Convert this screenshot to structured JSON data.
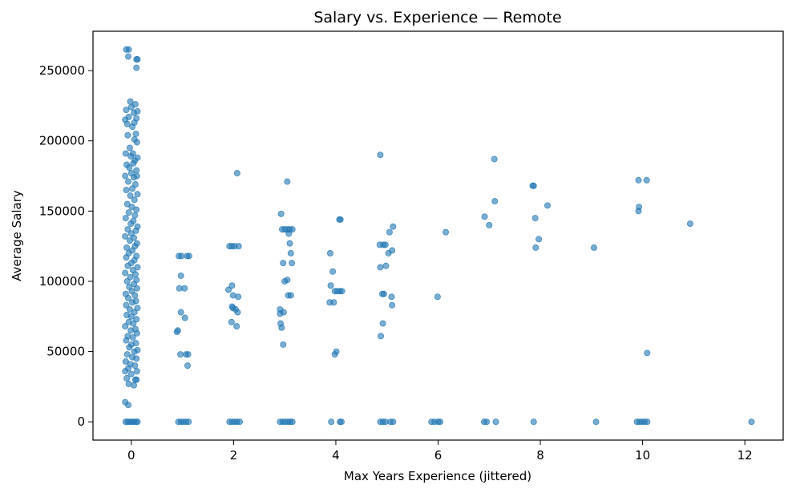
{
  "chart_data": {
    "type": "scatter",
    "title": "Salary vs. Experience — Remote",
    "xlabel": "Max Years Experience (jittered)",
    "ylabel": "Average Salary",
    "xlim": [
      -0.75,
      12.75
    ],
    "ylim": [
      -13000,
      278000
    ],
    "xticks": [
      0,
      2,
      4,
      6,
      8,
      10,
      12
    ],
    "xtick_labels": [
      "0",
      "2",
      "4",
      "6",
      "8",
      "10",
      "12"
    ],
    "yticks": [
      0,
      50000,
      100000,
      150000,
      200000,
      250000
    ],
    "ytick_labels": [
      "0",
      "50000",
      "100000",
      "150000",
      "200000",
      "250000"
    ],
    "grid": false,
    "legend": "none",
    "marker_color": "#1f77b4",
    "marker_alpha": 0.6,
    "points": [
      [
        -0.1,
        265000
      ],
      [
        -0.05,
        265000
      ],
      [
        0.1,
        258000
      ],
      [
        0.12,
        258000
      ],
      [
        -0.06,
        260000
      ],
      [
        0.1,
        252000
      ],
      [
        -0.02,
        228000
      ],
      [
        0.08,
        226000
      ],
      [
        -0.1,
        222000
      ],
      [
        0.0,
        224000
      ],
      [
        0.05,
        220000
      ],
      [
        0.12,
        221000
      ],
      [
        -0.12,
        215000
      ],
      [
        -0.05,
        217000
      ],
      [
        0.06,
        213000
      ],
      [
        0.1,
        216000
      ],
      [
        -0.08,
        212000
      ],
      [
        0.02,
        210000
      ],
      [
        0.09,
        205000
      ],
      [
        -0.07,
        204000
      ],
      [
        0.11,
        199000
      ],
      [
        0.06,
        201000
      ],
      [
        -0.03,
        195000
      ],
      [
        0.03,
        191000
      ],
      [
        -0.11,
        191000
      ],
      [
        0.12,
        188000
      ],
      [
        -0.01,
        189000
      ],
      [
        0.07,
        186000
      ],
      [
        -0.09,
        183000
      ],
      [
        0.04,
        184000
      ],
      [
        0.1,
        179000
      ],
      [
        -0.04,
        181000
      ],
      [
        0.0,
        177000
      ],
      [
        -0.12,
        175000
      ],
      [
        0.11,
        175000
      ],
      [
        0.05,
        174000
      ],
      [
        -0.06,
        171000
      ],
      [
        0.08,
        169000
      ],
      [
        0.02,
        166000
      ],
      [
        -0.1,
        165000
      ],
      [
        0.12,
        162000
      ],
      [
        -0.02,
        161000
      ],
      [
        0.06,
        158000
      ],
      [
        -0.08,
        155000
      ],
      [
        0.01,
        153000
      ],
      [
        0.1,
        151000
      ],
      [
        -0.05,
        149000
      ],
      [
        0.07,
        147000
      ],
      [
        -0.11,
        145000
      ],
      [
        0.04,
        143000
      ],
      [
        -0.01,
        141000
      ],
      [
        0.12,
        139000
      ],
      [
        -0.07,
        137000
      ],
      [
        0.09,
        136000
      ],
      [
        0.0,
        134000
      ],
      [
        -0.12,
        132000
      ],
      [
        0.05,
        131000
      ],
      [
        -0.03,
        129000
      ],
      [
        0.11,
        127000
      ],
      [
        0.07,
        125000
      ],
      [
        -0.09,
        124000
      ],
      [
        0.02,
        122000
      ],
      [
        -0.05,
        120000
      ],
      [
        0.1,
        118000
      ],
      [
        -0.1,
        117000
      ],
      [
        0.06,
        115000
      ],
      [
        0.0,
        113000
      ],
      [
        -0.07,
        111000
      ],
      [
        0.12,
        110000
      ],
      [
        0.03,
        108000
      ],
      [
        -0.12,
        106000
      ],
      [
        0.08,
        105000
      ],
      [
        -0.02,
        103000
      ],
      [
        0.1,
        101000
      ],
      [
        -0.08,
        100000
      ],
      [
        0.05,
        98000
      ],
      [
        -0.04,
        96000
      ],
      [
        0.11,
        95000
      ],
      [
        0.01,
        93000
      ],
      [
        -0.11,
        91000
      ],
      [
        0.07,
        90000
      ],
      [
        -0.06,
        88000
      ],
      [
        0.09,
        86000
      ],
      [
        0.02,
        85000
      ],
      [
        -0.1,
        83000
      ],
      [
        0.12,
        81000
      ],
      [
        -0.03,
        80000
      ],
      [
        0.06,
        78000
      ],
      [
        -0.09,
        76000
      ],
      [
        0.0,
        75000
      ],
      [
        0.1,
        73000
      ],
      [
        -0.05,
        71000
      ],
      [
        0.04,
        70000
      ],
      [
        -0.12,
        68000
      ],
      [
        0.08,
        66000
      ],
      [
        -0.01,
        65000
      ],
      [
        0.11,
        63000
      ],
      [
        -0.07,
        61000
      ],
      [
        0.03,
        60000
      ],
      [
        -0.1,
        58000
      ],
      [
        0.09,
        56000
      ],
      [
        0.0,
        55000
      ],
      [
        -0.04,
        53000
      ],
      [
        0.12,
        51000
      ],
      [
        0.06,
        50000
      ],
      [
        -0.08,
        48000
      ],
      [
        0.02,
        46000
      ],
      [
        0.1,
        45000
      ],
      [
        -0.11,
        43000
      ],
      [
        -0.02,
        41000
      ],
      [
        0.07,
        40000
      ],
      [
        -0.06,
        38000
      ],
      [
        0.11,
        36000
      ],
      [
        0.0,
        34000
      ],
      [
        -0.09,
        31000
      ],
      [
        0.08,
        30000
      ],
      [
        0.1,
        30000
      ],
      [
        -0.05,
        27000
      ],
      [
        0.05,
        26000
      ],
      [
        -0.12,
        36000
      ],
      [
        -0.12,
        14000
      ],
      [
        -0.06,
        12000
      ],
      [
        -0.11,
        0
      ],
      [
        -0.07,
        0
      ],
      [
        -0.03,
        0
      ],
      [
        0.01,
        0
      ],
      [
        0.05,
        0
      ],
      [
        0.09,
        0
      ],
      [
        0.12,
        0
      ],
      [
        0.98,
        118000
      ],
      [
        0.93,
        118000
      ],
      [
        1.09,
        118000
      ],
      [
        1.13,
        118000
      ],
      [
        0.97,
        104000
      ],
      [
        1.04,
        95000
      ],
      [
        0.94,
        95000
      ],
      [
        0.97,
        78000
      ],
      [
        1.05,
        74000
      ],
      [
        0.91,
        65000
      ],
      [
        0.89,
        64000
      ],
      [
        0.96,
        48000
      ],
      [
        1.07,
        48000
      ],
      [
        1.11,
        48000
      ],
      [
        1.1,
        40000
      ],
      [
        0.92,
        0
      ],
      [
        0.97,
        0
      ],
      [
        1.02,
        0
      ],
      [
        1.07,
        0
      ],
      [
        1.12,
        0
      ],
      [
        2.07,
        177000
      ],
      [
        1.92,
        125000
      ],
      [
        1.97,
        125000
      ],
      [
        2.02,
        125000
      ],
      [
        2.1,
        125000
      ],
      [
        1.9,
        94000
      ],
      [
        1.97,
        97000
      ],
      [
        1.99,
        90000
      ],
      [
        2.09,
        89000
      ],
      [
        1.97,
        82000
      ],
      [
        2.04,
        80000
      ],
      [
        1.99,
        81000
      ],
      [
        2.08,
        78000
      ],
      [
        1.96,
        71000
      ],
      [
        2.06,
        68000
      ],
      [
        1.92,
        0
      ],
      [
        1.97,
        0
      ],
      [
        2.02,
        0
      ],
      [
        2.07,
        0
      ],
      [
        2.12,
        0
      ],
      [
        3.05,
        171000
      ],
      [
        2.93,
        148000
      ],
      [
        2.95,
        137000
      ],
      [
        3.0,
        137000
      ],
      [
        3.05,
        137000
      ],
      [
        3.1,
        137000
      ],
      [
        3.15,
        137000
      ],
      [
        3.08,
        134000
      ],
      [
        3.1,
        127000
      ],
      [
        3.12,
        120000
      ],
      [
        2.97,
        113000
      ],
      [
        3.14,
        113000
      ],
      [
        3.05,
        101000
      ],
      [
        3.0,
        100000
      ],
      [
        3.07,
        90000
      ],
      [
        3.12,
        90000
      ],
      [
        2.91,
        80000
      ],
      [
        2.98,
        78000
      ],
      [
        2.91,
        77000
      ],
      [
        2.92,
        70000
      ],
      [
        2.94,
        67000
      ],
      [
        2.97,
        55000
      ],
      [
        2.91,
        0
      ],
      [
        2.96,
        0
      ],
      [
        3.01,
        0
      ],
      [
        3.06,
        0
      ],
      [
        3.11,
        0
      ],
      [
        3.15,
        0
      ],
      [
        4.07,
        144000
      ],
      [
        4.09,
        144000
      ],
      [
        3.89,
        120000
      ],
      [
        3.94,
        107000
      ],
      [
        3.9,
        97000
      ],
      [
        3.98,
        93000
      ],
      [
        4.03,
        93000
      ],
      [
        4.08,
        93000
      ],
      [
        4.12,
        93000
      ],
      [
        3.88,
        85000
      ],
      [
        3.96,
        85000
      ],
      [
        4.01,
        50000
      ],
      [
        3.98,
        48000
      ],
      [
        3.91,
        0
      ],
      [
        4.08,
        0
      ],
      [
        4.11,
        0
      ],
      [
        4.87,
        190000
      ],
      [
        4.86,
        126000
      ],
      [
        4.93,
        126000
      ],
      [
        4.97,
        126000
      ],
      [
        5.12,
        139000
      ],
      [
        5.05,
        135000
      ],
      [
        5.1,
        122000
      ],
      [
        4.98,
        111000
      ],
      [
        5.03,
        120000
      ],
      [
        4.87,
        110000
      ],
      [
        4.91,
        91000
      ],
      [
        4.94,
        91000
      ],
      [
        5.09,
        89000
      ],
      [
        5.1,
        83000
      ],
      [
        4.92,
        70000
      ],
      [
        4.88,
        61000
      ],
      [
        4.87,
        0
      ],
      [
        4.92,
        0
      ],
      [
        4.97,
        0
      ],
      [
        5.07,
        0
      ],
      [
        5.12,
        0
      ],
      [
        6.15,
        135000
      ],
      [
        5.99,
        89000
      ],
      [
        5.87,
        0
      ],
      [
        5.93,
        0
      ],
      [
        6.0,
        0
      ],
      [
        6.04,
        0
      ],
      [
        7.1,
        187000
      ],
      [
        7.11,
        157000
      ],
      [
        6.91,
        146000
      ],
      [
        7.0,
        140000
      ],
      [
        6.9,
        0
      ],
      [
        6.95,
        0
      ],
      [
        7.13,
        0
      ],
      [
        7.85,
        168000
      ],
      [
        7.87,
        168000
      ],
      [
        8.14,
        154000
      ],
      [
        7.9,
        145000
      ],
      [
        7.97,
        130000
      ],
      [
        7.91,
        124000
      ],
      [
        7.87,
        0
      ],
      [
        9.05,
        124000
      ],
      [
        9.09,
        0
      ],
      [
        9.92,
        172000
      ],
      [
        10.08,
        172000
      ],
      [
        9.93,
        153000
      ],
      [
        9.92,
        150000
      ],
      [
        10.09,
        49000
      ],
      [
        9.89,
        0
      ],
      [
        9.94,
        0
      ],
      [
        9.99,
        0
      ],
      [
        10.04,
        0
      ],
      [
        10.09,
        0
      ],
      [
        10.93,
        141000
      ],
      [
        12.13,
        0
      ]
    ]
  }
}
